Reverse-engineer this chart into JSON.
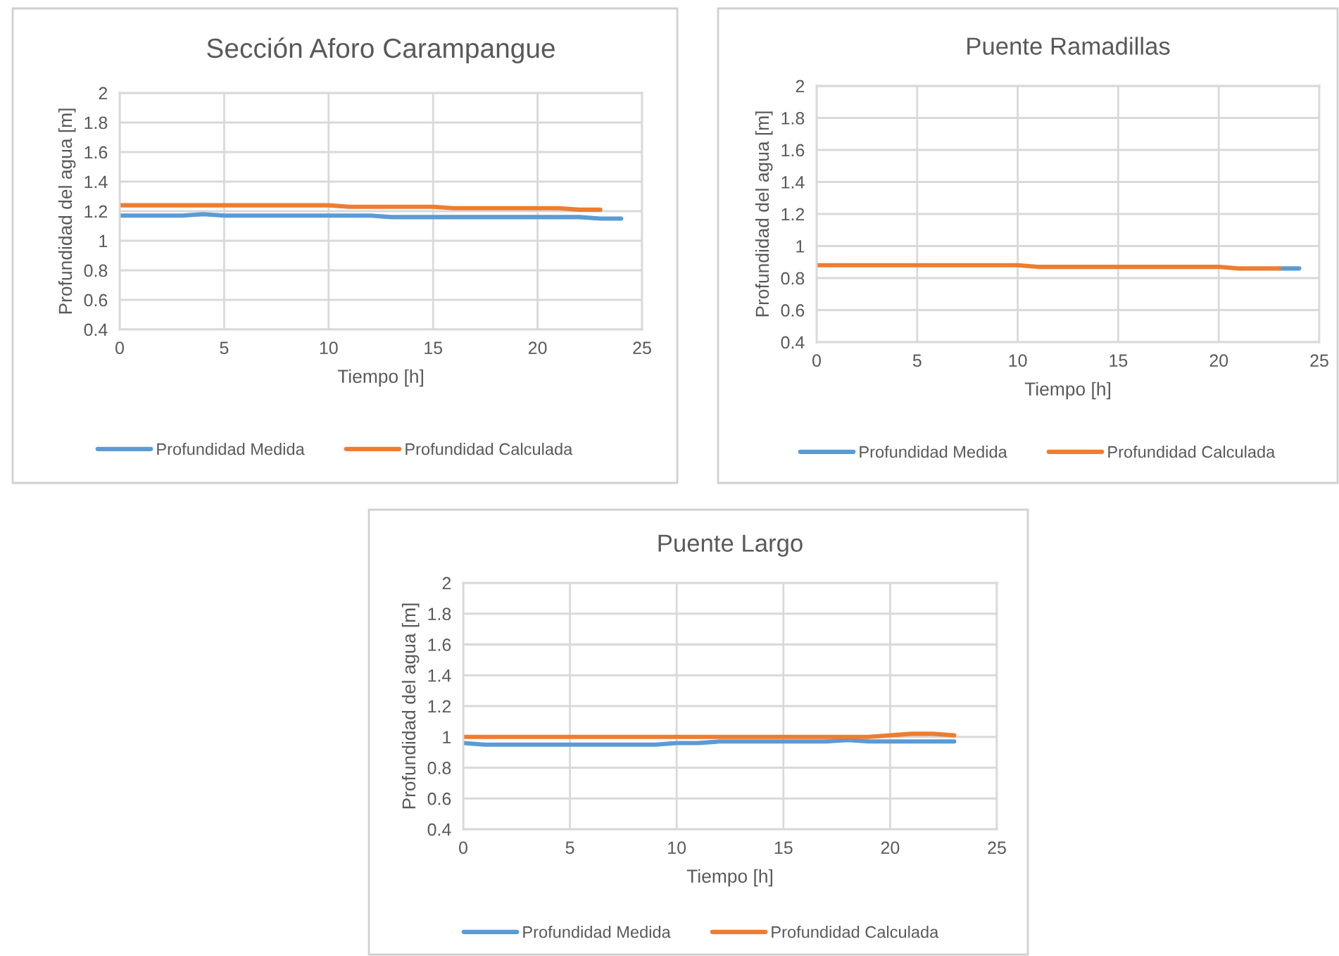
{
  "chart_data": [
    {
      "type": "line",
      "title": "Sección Aforo Carampangue",
      "xlabel": "Tiempo [h]",
      "ylabel": "Profundidad del agua [m]",
      "x": [
        0,
        1,
        2,
        3,
        4,
        5,
        6,
        7,
        8,
        9,
        10,
        11,
        12,
        13,
        14,
        15,
        16,
        17,
        18,
        19,
        20,
        21,
        22,
        23,
        24
      ],
      "series": [
        {
          "name": "Profundidad Medida",
          "color": "#5b9bd5",
          "values": [
            1.17,
            1.17,
            1.17,
            1.17,
            1.18,
            1.17,
            1.17,
            1.17,
            1.17,
            1.17,
            1.17,
            1.17,
            1.17,
            1.16,
            1.16,
            1.16,
            1.16,
            1.16,
            1.16,
            1.16,
            1.16,
            1.16,
            1.16,
            1.15,
            1.15
          ]
        },
        {
          "name": "Profundidad Calculada",
          "color": "#ed7d31",
          "values": [
            1.24,
            1.24,
            1.24,
            1.24,
            1.24,
            1.24,
            1.24,
            1.24,
            1.24,
            1.24,
            1.24,
            1.23,
            1.23,
            1.23,
            1.23,
            1.23,
            1.22,
            1.22,
            1.22,
            1.22,
            1.22,
            1.22,
            1.21,
            1.21,
            null
          ]
        }
      ],
      "xlim": [
        0,
        25
      ],
      "xticks": [
        0,
        5,
        10,
        15,
        20,
        25
      ],
      "ylim": [
        0.4,
        2
      ],
      "yticks": [
        0.4,
        0.6,
        0.8,
        1,
        1.2,
        1.4,
        1.6,
        1.8,
        2
      ],
      "grid": true,
      "legend": "bottom"
    },
    {
      "type": "line",
      "title": "Puente Ramadillas",
      "xlabel": "Tiempo [h]",
      "ylabel": "Profundidad del agua [m]",
      "x": [
        0,
        1,
        2,
        3,
        4,
        5,
        6,
        7,
        8,
        9,
        10,
        11,
        12,
        13,
        14,
        15,
        16,
        17,
        18,
        19,
        20,
        21,
        22,
        23,
        24
      ],
      "series": [
        {
          "name": "Profundidad Medida",
          "color": "#5b9bd5",
          "values": [
            null,
            null,
            null,
            null,
            null,
            null,
            null,
            null,
            null,
            null,
            null,
            null,
            null,
            null,
            null,
            null,
            null,
            null,
            null,
            null,
            null,
            null,
            null,
            0.86,
            0.86
          ]
        },
        {
          "name": "Profundidad Calculada",
          "color": "#ed7d31",
          "values": [
            0.88,
            0.88,
            0.88,
            0.88,
            0.88,
            0.88,
            0.88,
            0.88,
            0.88,
            0.88,
            0.88,
            0.87,
            0.87,
            0.87,
            0.87,
            0.87,
            0.87,
            0.87,
            0.87,
            0.87,
            0.87,
            0.86,
            0.86,
            0.86,
            null
          ]
        }
      ],
      "xlim": [
        0,
        25
      ],
      "xticks": [
        0,
        5,
        10,
        15,
        20,
        25
      ],
      "ylim": [
        0.4,
        2
      ],
      "yticks": [
        0.4,
        0.6,
        0.8,
        1,
        1.2,
        1.4,
        1.6,
        1.8,
        2
      ],
      "grid": true,
      "legend": "bottom"
    },
    {
      "type": "line",
      "title": "Puente Largo",
      "xlabel": "Tiempo [h]",
      "ylabel": "Profundidad del agua [m]",
      "x": [
        0,
        1,
        2,
        3,
        4,
        5,
        6,
        7,
        8,
        9,
        10,
        11,
        12,
        13,
        14,
        15,
        16,
        17,
        18,
        19,
        20,
        21,
        22,
        23
      ],
      "series": [
        {
          "name": "Profundidad Medida",
          "color": "#5b9bd5",
          "values": [
            0.96,
            0.95,
            0.95,
            0.95,
            0.95,
            0.95,
            0.95,
            0.95,
            0.95,
            0.95,
            0.96,
            0.96,
            0.97,
            0.97,
            0.97,
            0.97,
            0.97,
            0.97,
            0.98,
            0.97,
            0.97,
            0.97,
            0.97,
            0.97
          ]
        },
        {
          "name": "Profundidad Calculada",
          "color": "#ed7d31",
          "values": [
            1,
            1,
            1,
            1,
            1,
            1,
            1,
            1,
            1,
            1,
            1,
            1,
            1,
            1,
            1,
            1,
            1,
            1,
            1,
            1,
            1.01,
            1.02,
            1.02,
            1.01
          ]
        }
      ],
      "xlim": [
        0,
        25
      ],
      "xticks": [
        0,
        5,
        10,
        15,
        20,
        25
      ],
      "ylim": [
        0.4,
        2
      ],
      "yticks": [
        0.4,
        0.6,
        0.8,
        1,
        1.2,
        1.4,
        1.6,
        1.8,
        2
      ],
      "grid": true,
      "legend": "bottom"
    }
  ]
}
